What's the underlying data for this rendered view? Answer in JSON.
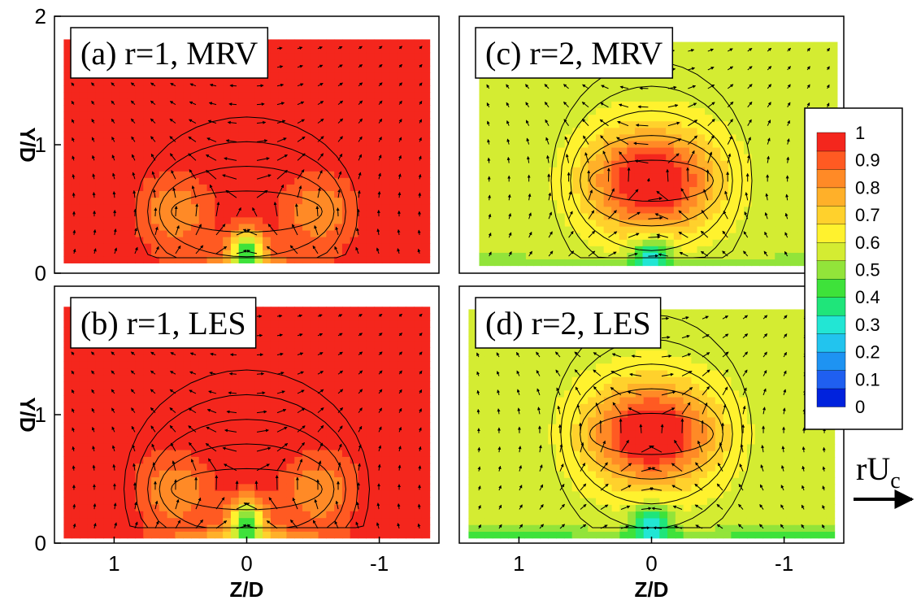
{
  "chart_data": {
    "type": "heatmap",
    "title": "",
    "colormap": [
      "#0022dd",
      "#1f5ff0",
      "#1e93f2",
      "#22c4ee",
      "#22e6d4",
      "#1fe57a",
      "#3ee23a",
      "#92e43a",
      "#d4ec32",
      "#fff22e",
      "#ffd12c",
      "#ffb029",
      "#ff8a26",
      "#ff5a22",
      "#f4261d"
    ],
    "colorbar": {
      "label": "",
      "ticks": [
        "1",
        "0.9",
        "0.8",
        "0.7",
        "0.6",
        "0.5",
        "0.4",
        "0.3",
        "0.2",
        "0.1",
        "0"
      ],
      "values": [
        1,
        0.9,
        0.8,
        0.7,
        0.6,
        0.5,
        0.4,
        0.3,
        0.2,
        0.1,
        0
      ]
    },
    "reference_vector": {
      "label": "rU",
      "subscript": "c"
    },
    "panels": [
      {
        "id": "a",
        "label": "(a) r=1, MRV",
        "xlabel": "",
        "ylabel": "Y/D",
        "xlim": [
          1.45,
          -1.45
        ],
        "ylim": [
          0,
          2
        ],
        "xticks": [],
        "yticks": [
          0,
          1,
          2
        ],
        "ytick_labels": [
          "0",
          "1",
          "2"
        ],
        "data_extent": {
          "z": [
            1.38,
            -1.38
          ],
          "y": [
            0.08,
            1.82
          ]
        },
        "r": 1,
        "min_value": 0.35,
        "free_stream_value": 1.0,
        "vortex": {
          "zc": 0.55,
          "yc": 0.48,
          "wall_jet_value": 0.35
        },
        "contour_levels": [
          0.35,
          0.55,
          0.75,
          0.9
        ]
      },
      {
        "id": "c",
        "label": "(c) r=2, MRV",
        "xlabel": "",
        "ylabel": "",
        "xlim": [
          1.45,
          -1.45
        ],
        "ylim": [
          0,
          2
        ],
        "xticks": [],
        "yticks": [],
        "data_extent": {
          "z": [
            1.3,
            -1.4
          ],
          "y": [
            0.06,
            1.8
          ]
        },
        "r": 2,
        "min_value": 0.35,
        "free_stream_value": 0.55,
        "vortex": {
          "zc": 0.45,
          "yc": 0.72,
          "core_value": 0.95
        },
        "contour_levels": [
          0.2,
          0.35,
          0.55,
          0.75,
          0.9
        ]
      },
      {
        "id": "b",
        "label": "(b) r=1, LES",
        "xlabel": "Z/D",
        "ylabel": "Y/D",
        "xlim": [
          1.45,
          -1.45
        ],
        "ylim": [
          0,
          2
        ],
        "xticks": [
          1,
          0,
          -1
        ],
        "xtick_labels": [
          "1",
          "0",
          "-1"
        ],
        "yticks": [
          0,
          1
        ],
        "ytick_labels": [
          "0",
          "1"
        ],
        "data_extent": {
          "z": [
            1.38,
            -1.38
          ],
          "y": [
            0.04,
            1.84
          ]
        },
        "r": 1,
        "min_value": 0.35,
        "free_stream_value": 1.0,
        "vortex": {
          "zc": 0.55,
          "yc": 0.42,
          "wall_jet_value": 0.35
        },
        "contour_levels": [
          0.3,
          0.5,
          0.7,
          0.85,
          1.0
        ]
      },
      {
        "id": "d",
        "label": "(d) r=2, LES",
        "xlabel": "Z/D",
        "ylabel": "",
        "xlim": [
          1.45,
          -1.45
        ],
        "ylim": [
          0,
          2
        ],
        "xticks": [
          1,
          0,
          -1
        ],
        "xtick_labels": [
          "1",
          "0",
          "-1"
        ],
        "yticks": [],
        "data_extent": {
          "z": [
            1.38,
            -1.38
          ],
          "y": [
            0.04,
            1.82
          ]
        },
        "r": 2,
        "min_value": 0.35,
        "free_stream_value": 0.55,
        "vortex": {
          "zc": 0.45,
          "yc": 0.85,
          "core_value": 0.95
        },
        "contour_levels": [
          0.3,
          0.5,
          0.7,
          0.85,
          1.0
        ]
      }
    ]
  }
}
